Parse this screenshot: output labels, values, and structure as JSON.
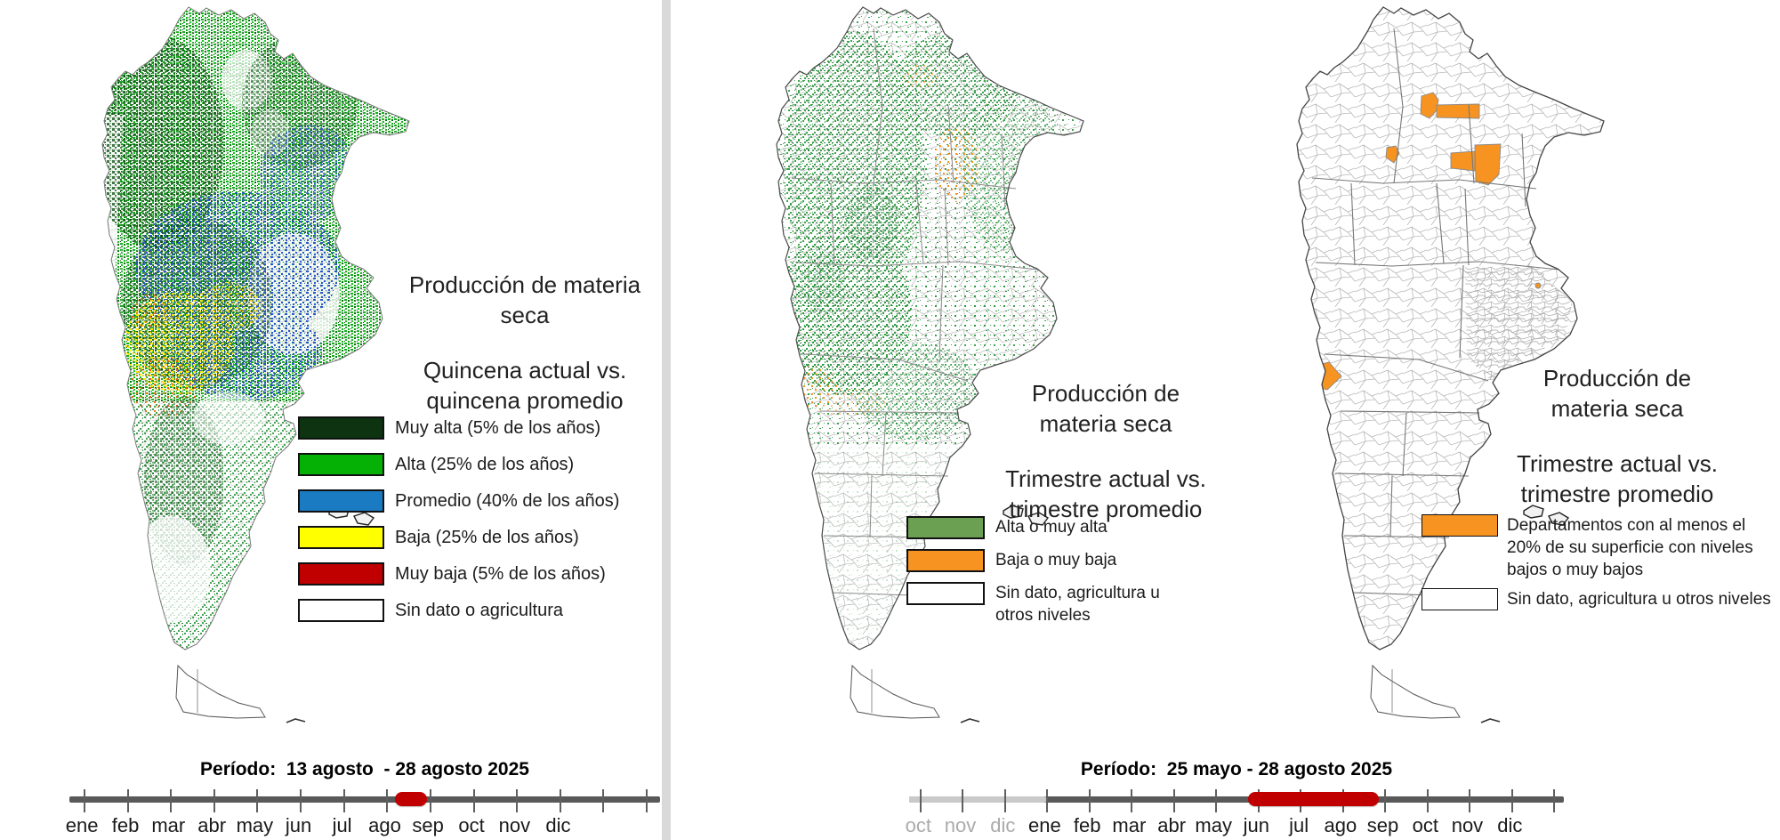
{
  "figure": {
    "left_panel": {
      "title": "Producción de materia seca",
      "subtitle": "Quincena actual vs. quincena  promedio",
      "legend": [
        {
          "label": "Muy alta (5% de los años)",
          "color": "#0d3310"
        },
        {
          "label": "Alta (25% de los años)",
          "color": "#04b104"
        },
        {
          "label": "Promedio (40% de los años)",
          "color": "#1a7ac2"
        },
        {
          "label": "Baja (25% de los años)",
          "color": "#ffff00"
        },
        {
          "label": "Muy baja (5% de los años)",
          "color": "#c00000"
        },
        {
          "label": "Sin dato o agricultura",
          "color": "#ffffff"
        }
      ],
      "timeline": {
        "period_label": "Período:  13 agosto  - 28 agosto 2025",
        "months": [
          "ene",
          "feb",
          "mar",
          "abr",
          "may",
          "jun",
          "jul",
          "ago",
          "sep",
          "oct",
          "nov",
          "dic"
        ],
        "muted_months": 0,
        "total_ticks": 14,
        "bar_color": "#595959",
        "muted_bar_color": "#c9c9c9",
        "highlight_color": "#c00000",
        "highlight_start": 7.2,
        "highlight_end": 7.93
      }
    },
    "middle_panel": {
      "title": "Producción de materia seca",
      "subtitle": "Trimestre actual vs. trimestre promedio",
      "legend": [
        {
          "label": "Alta o muy alta",
          "color": "#6ba053"
        },
        {
          "label": "Baja o muy baja",
          "color": "#f79321"
        },
        {
          "label": "Sin dato, agricultura u otros niveles",
          "color": "#ffffff"
        }
      ]
    },
    "right_panel": {
      "title": "Producción de materia seca",
      "subtitle": "Trimestre actual vs. trimestre promedio",
      "legend": [
        {
          "label": "Departamentos con al menos el 20% de su superficie con niveles bajos o muy bajos",
          "color": "#f79321"
        },
        {
          "label": "Sin dato, agricultura u otros niveles",
          "color": "#ffffff"
        }
      ],
      "timeline": {
        "period_label": "Período:  25 mayo - 28 agosto 2025",
        "months": [
          "oct",
          "nov",
          "dic",
          "ene",
          "feb",
          "mar",
          "abr",
          "may",
          "jun",
          "jul",
          "ago",
          "sep",
          "oct",
          "nov",
          "dic"
        ],
        "muted_months": 3,
        "total_ticks": 16,
        "bar_color": "#595959",
        "muted_bar_color": "#c9c9c9",
        "highlight_color": "#c00000",
        "highlight_start": 7.78,
        "highlight_end": 10.87
      }
    },
    "map_palette": {
      "raster_green_bright": "#0fae17",
      "raster_green_dark": "#07480c",
      "raster_blue": "#2a57c8",
      "raster_yellow": "#ffe400",
      "raster_orange": "#f07818",
      "trimestre_green": "#2b9a3e",
      "trimestre_orange": "#f79321",
      "boundary_gray": "#b5b5b5"
    }
  }
}
